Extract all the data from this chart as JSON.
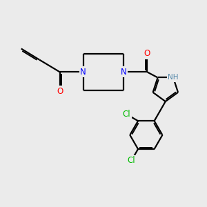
{
  "background_color": "#ebebeb",
  "bond_color": "#000000",
  "bond_width": 1.6,
  "atom_colors": {
    "N": "#0000ff",
    "O": "#ff0000",
    "Cl": "#00bb00",
    "NH": "#5588aa",
    "C": "#000000"
  },
  "font_size_atom": 8.5,
  "font_size_NH": 7.5
}
